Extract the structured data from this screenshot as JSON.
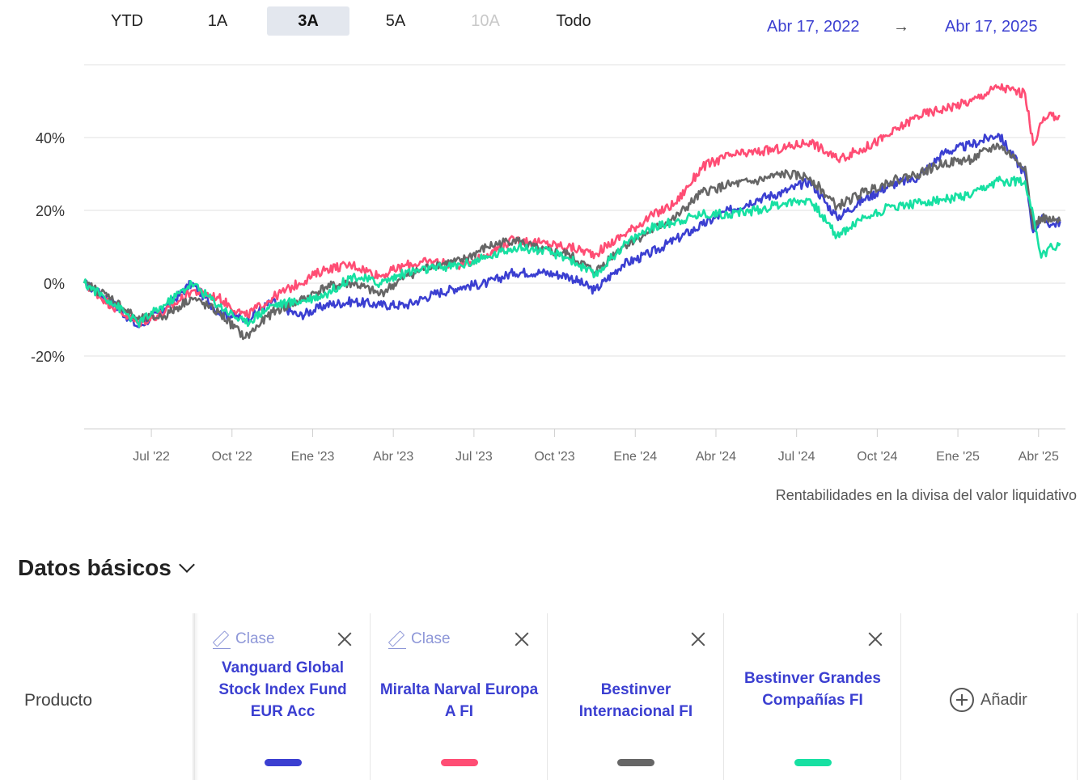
{
  "range_tabs": [
    {
      "label": "YTD",
      "state": "normal"
    },
    {
      "label": "1A",
      "state": "normal"
    },
    {
      "label": "3A",
      "state": "active"
    },
    {
      "label": "5A",
      "state": "normal"
    },
    {
      "label": "10A",
      "state": "disabled"
    },
    {
      "label": "Todo",
      "state": "normal"
    }
  ],
  "date_range": {
    "from": "Abr 17, 2022",
    "arrow": "→",
    "to": "Abr 17, 2025"
  },
  "footnote": "Rentabilidades en la divisa del valor liquidativo",
  "section": {
    "title": "Datos básicos"
  },
  "compare": {
    "row_label": "Producto",
    "add_label": "Añadir",
    "products": [
      {
        "clase": "Clase",
        "name": "Vanguard Global Stock Index Fund EUR Acc",
        "color": "#3b3fd1"
      },
      {
        "clase": "Clase",
        "name": "Miralta Narval Europa A FI",
        "color": "#ff4d74"
      },
      {
        "clase": "",
        "name": "Bestinver Internacional FI",
        "color": "#666666"
      },
      {
        "clase": "",
        "name": "Bestinver Grandes Compañías FI",
        "color": "#17e0a2"
      }
    ]
  },
  "chart_data": {
    "type": "line",
    "x_unit": "months since Apr 2022",
    "xlim": [
      0,
      36.5
    ],
    "ylim": [
      -40,
      60
    ],
    "ytick_values": [
      -20,
      0,
      20,
      40
    ],
    "ytick_labels": [
      "-20%",
      "0%",
      "20%",
      "40%"
    ],
    "xtick_values": [
      2.5,
      5.5,
      8.5,
      11.5,
      14.5,
      17.5,
      20.5,
      23.5,
      26.5,
      29.5,
      32.5,
      35.5
    ],
    "xtick_labels": [
      "Jul '22",
      "Oct '22",
      "Ene '23",
      "Abr '23",
      "Jul '23",
      "Oct '23",
      "Ene '24",
      "Abr '24",
      "Jul '24",
      "Oct '24",
      "Ene '25",
      "Abr '25"
    ],
    "grid": true,
    "series": [
      {
        "name": "Vanguard Global Stock Index Fund EUR Acc",
        "color": "#3b3fd1",
        "x": [
          0,
          1,
          2,
          3,
          4,
          5,
          6,
          7,
          8,
          9,
          10,
          11,
          12,
          13,
          14,
          15,
          16,
          17,
          18,
          19,
          20,
          21,
          22,
          23,
          24,
          25,
          26,
          27,
          28,
          29,
          30,
          31,
          32,
          33,
          34,
          35,
          35.3,
          35.6,
          36,
          36.3
        ],
        "y": [
          0,
          -5,
          -12,
          -7,
          0,
          -8,
          -10,
          -5,
          -9,
          -6,
          -5,
          -6,
          -6,
          -3,
          -1,
          0,
          3,
          3,
          2,
          -2,
          5,
          8,
          12,
          16,
          20,
          23,
          25,
          28,
          18,
          23,
          27,
          29,
          36,
          38,
          41,
          30,
          14,
          18,
          16,
          17
        ]
      },
      {
        "name": "Miralta Narval Europa A FI",
        "color": "#ff4d74",
        "x": [
          0,
          1,
          2,
          3,
          4,
          5,
          6,
          7,
          8,
          9,
          10,
          11,
          12,
          13,
          14,
          15,
          16,
          17,
          18,
          19,
          20,
          21,
          22,
          23,
          24,
          25,
          26,
          27,
          28,
          29,
          30,
          31,
          32,
          33,
          34,
          35,
          35.3,
          35.6,
          36,
          36.3
        ],
        "y": [
          0,
          -6,
          -11,
          -8,
          -2,
          -4,
          -9,
          -4,
          0,
          4,
          5,
          2,
          5,
          6,
          5,
          8,
          12,
          11,
          10,
          8,
          13,
          18,
          22,
          32,
          35,
          36,
          37,
          39,
          34,
          37,
          41,
          46,
          48,
          50,
          54,
          52,
          38,
          44,
          46,
          46
        ]
      },
      {
        "name": "Bestinver Internacional FI",
        "color": "#666666",
        "x": [
          0,
          1,
          2,
          3,
          4,
          5,
          6,
          7,
          8,
          9,
          10,
          11,
          12,
          13,
          14,
          15,
          16,
          17,
          18,
          19,
          20,
          21,
          22,
          23,
          24,
          25,
          26,
          27,
          28,
          29,
          30,
          31,
          32,
          33,
          34,
          35,
          35.3,
          35.6,
          36,
          36.3
        ],
        "y": [
          0,
          -4,
          -10,
          -9,
          -4,
          -8,
          -15,
          -8,
          -5,
          -1,
          0,
          -3,
          2,
          5,
          6,
          10,
          12,
          9,
          8,
          3,
          10,
          14,
          18,
          25,
          27,
          28,
          30,
          29,
          21,
          25,
          28,
          30,
          33,
          34,
          38,
          32,
          15,
          18,
          17,
          17
        ]
      },
      {
        "name": "Bestinver Grandes Compañías FI",
        "color": "#17e0a2",
        "x": [
          0,
          1,
          2,
          3,
          4,
          5,
          6,
          7,
          8,
          9,
          10,
          11,
          12,
          13,
          14,
          15,
          16,
          17,
          18,
          19,
          20,
          21,
          22,
          23,
          24,
          25,
          26,
          27,
          28,
          29,
          30,
          31,
          32,
          33,
          34,
          35,
          35.3,
          35.6,
          36,
          36.3
        ],
        "y": [
          0,
          -5,
          -11,
          -6,
          0,
          -6,
          -11,
          -6,
          -5,
          -3,
          2,
          0,
          3,
          4,
          5,
          7,
          10,
          9,
          7,
          2,
          10,
          15,
          17,
          19,
          19,
          20,
          22,
          23,
          13,
          18,
          21,
          22,
          23,
          24,
          28,
          28,
          19,
          7,
          10,
          11
        ]
      }
    ]
  }
}
